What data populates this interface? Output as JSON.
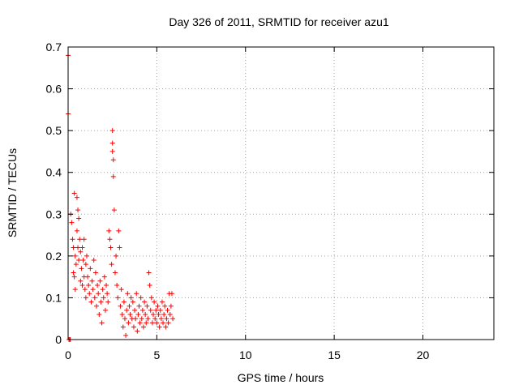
{
  "chart_data": {
    "type": "scatter",
    "title": "Day 326 of 2011, SRMTID for receiver azu1",
    "xlabel": "GPS time / hours",
    "ylabel": "SRMTID / TECUs",
    "xlim": [
      0,
      24
    ],
    "ylim": [
      0,
      0.7
    ],
    "xticks": [
      0,
      5,
      10,
      15,
      20
    ],
    "yticks": [
      0,
      0.1,
      0.2,
      0.3,
      0.4,
      0.5,
      0.6,
      0.7
    ],
    "xtick_labels": [
      "0",
      "5",
      "10",
      "15",
      "20"
    ],
    "ytick_labels": [
      "0",
      "0.1",
      "0.2",
      "0.3",
      "0.4",
      "0.5",
      "0.6",
      "0.7"
    ],
    "grid": true,
    "marker": "+",
    "marker_color": "#ff0000",
    "series": [
      {
        "name": "SRMTID",
        "points": [
          [
            0.0,
            0.68
          ],
          [
            0.0,
            0.54
          ],
          [
            0.05,
            0.0
          ],
          [
            0.1,
            0.0
          ],
          [
            0.12,
            0.0
          ],
          [
            0.15,
            0.3
          ],
          [
            0.2,
            0.28
          ],
          [
            0.25,
            0.24
          ],
          [
            0.3,
            0.22
          ],
          [
            0.3,
            0.16
          ],
          [
            0.35,
            0.15
          ],
          [
            0.35,
            0.35
          ],
          [
            0.4,
            0.2
          ],
          [
            0.4,
            0.12
          ],
          [
            0.45,
            0.18
          ],
          [
            0.5,
            0.34
          ],
          [
            0.5,
            0.26
          ],
          [
            0.55,
            0.31
          ],
          [
            0.55,
            0.22
          ],
          [
            0.6,
            0.29
          ],
          [
            0.6,
            0.19
          ],
          [
            0.65,
            0.24
          ],
          [
            0.7,
            0.21
          ],
          [
            0.7,
            0.14
          ],
          [
            0.75,
            0.17
          ],
          [
            0.8,
            0.22
          ],
          [
            0.8,
            0.13
          ],
          [
            0.85,
            0.19
          ],
          [
            0.9,
            0.15
          ],
          [
            0.9,
            0.24
          ],
          [
            0.95,
            0.12
          ],
          [
            1.0,
            0.18
          ],
          [
            1.0,
            0.1
          ],
          [
            1.05,
            0.2
          ],
          [
            1.1,
            0.15
          ],
          [
            1.15,
            0.13
          ],
          [
            1.2,
            0.11
          ],
          [
            1.25,
            0.17
          ],
          [
            1.3,
            0.09
          ],
          [
            1.35,
            0.14
          ],
          [
            1.4,
            0.12
          ],
          [
            1.45,
            0.19
          ],
          [
            1.5,
            0.1
          ],
          [
            1.55,
            0.16
          ],
          [
            1.6,
            0.08
          ],
          [
            1.65,
            0.13
          ],
          [
            1.7,
            0.11
          ],
          [
            1.75,
            0.06
          ],
          [
            1.8,
            0.14
          ],
          [
            1.85,
            0.09
          ],
          [
            1.9,
            0.04
          ],
          [
            1.95,
            0.12
          ],
          [
            2.0,
            0.1
          ],
          [
            2.05,
            0.15
          ],
          [
            2.1,
            0.07
          ],
          [
            2.15,
            0.13
          ],
          [
            2.2,
            0.11
          ],
          [
            2.25,
            0.09
          ],
          [
            2.3,
            0.26
          ],
          [
            2.35,
            0.24
          ],
          [
            2.4,
            0.22
          ],
          [
            2.45,
            0.18
          ],
          [
            2.5,
            0.5
          ],
          [
            2.5,
            0.47
          ],
          [
            2.5,
            0.45
          ],
          [
            2.55,
            0.43
          ],
          [
            2.55,
            0.39
          ],
          [
            2.6,
            0.31
          ],
          [
            2.65,
            0.16
          ],
          [
            2.7,
            0.2
          ],
          [
            2.75,
            0.13
          ],
          [
            2.8,
            0.1
          ],
          [
            2.85,
            0.26
          ],
          [
            2.9,
            0.22
          ],
          [
            2.95,
            0.08
          ],
          [
            3.0,
            0.12
          ],
          [
            3.05,
            0.06
          ],
          [
            3.1,
            0.03
          ],
          [
            3.15,
            0.09
          ],
          [
            3.2,
            0.05
          ],
          [
            3.25,
            0.01
          ],
          [
            3.3,
            0.07
          ],
          [
            3.35,
            0.11
          ],
          [
            3.4,
            0.04
          ],
          [
            3.45,
            0.08
          ],
          [
            3.5,
            0.06
          ],
          [
            3.55,
            0.1
          ],
          [
            3.6,
            0.05
          ],
          [
            3.65,
            0.09
          ],
          [
            3.7,
            0.03
          ],
          [
            3.75,
            0.07
          ],
          [
            3.8,
            0.05
          ],
          [
            3.85,
            0.11
          ],
          [
            3.9,
            0.02
          ],
          [
            3.95,
            0.06
          ],
          [
            4.0,
            0.08
          ],
          [
            4.05,
            0.04
          ],
          [
            4.1,
            0.1
          ],
          [
            4.15,
            0.05
          ],
          [
            4.2,
            0.07
          ],
          [
            4.25,
            0.03
          ],
          [
            4.3,
            0.09
          ],
          [
            4.35,
            0.06
          ],
          [
            4.4,
            0.04
          ],
          [
            4.45,
            0.08
          ],
          [
            4.5,
            0.05
          ],
          [
            4.55,
            0.16
          ],
          [
            4.6,
            0.13
          ],
          [
            4.65,
            0.07
          ],
          [
            4.7,
            0.1
          ],
          [
            4.75,
            0.04
          ],
          [
            4.8,
            0.06
          ],
          [
            4.85,
            0.09
          ],
          [
            4.9,
            0.05
          ],
          [
            4.95,
            0.07
          ],
          [
            5.0,
            0.04
          ],
          [
            5.05,
            0.08
          ],
          [
            5.1,
            0.06
          ],
          [
            5.15,
            0.03
          ],
          [
            5.2,
            0.07
          ],
          [
            5.25,
            0.05
          ],
          [
            5.3,
            0.09
          ],
          [
            5.35,
            0.04
          ],
          [
            5.4,
            0.06
          ],
          [
            5.45,
            0.08
          ],
          [
            5.5,
            0.03
          ],
          [
            5.55,
            0.05
          ],
          [
            5.6,
            0.07
          ],
          [
            5.65,
            0.04
          ],
          [
            5.7,
            0.11
          ],
          [
            5.75,
            0.06
          ],
          [
            5.8,
            0.08
          ],
          [
            5.85,
            0.11
          ],
          [
            5.9,
            0.05
          ]
        ]
      }
    ]
  }
}
